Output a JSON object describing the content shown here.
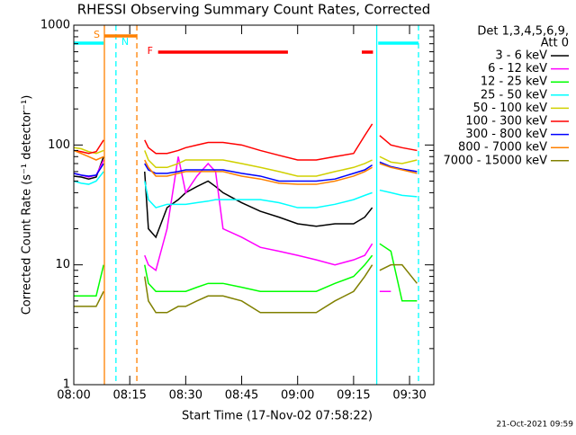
{
  "chart_data": {
    "type": "line",
    "title": "RHESSI Observing Summary Count Rates, Corrected",
    "xlabel": "Start Time (17-Nov-02 07:58:22)",
    "ylabel": "Corrected Count Rate (s⁻¹ detector⁻¹)",
    "legend_header": [
      "Det 1,3,4,5,6,9,",
      "Att 0"
    ],
    "footer": "21-Oct-2021 09:59",
    "log_y": true,
    "xlim": [
      0,
      96.5
    ],
    "ylim": [
      1,
      1000
    ],
    "xticks": [
      {
        "value": 0,
        "label": "08:00"
      },
      {
        "value": 15,
        "label": "08:15"
      },
      {
        "value": 30,
        "label": "08:30"
      },
      {
        "value": 45,
        "label": "08:45"
      },
      {
        "value": 60,
        "label": "09:00"
      },
      {
        "value": 75,
        "label": "09:15"
      },
      {
        "value": 90,
        "label": "09:30"
      }
    ],
    "yticks": [
      1,
      10,
      100,
      1000
    ],
    "x": [
      0,
      2,
      4,
      6,
      8,
      13,
      19,
      20,
      22,
      25,
      28,
      30,
      33,
      36,
      38,
      40,
      45,
      50,
      55,
      60,
      65,
      70,
      75,
      78,
      80,
      81,
      82,
      85,
      88,
      92
    ],
    "series": [
      {
        "name": "3 - 6 keV",
        "color": "#000000",
        "values": [
          55,
          54,
          52,
          54,
          80,
          null,
          60,
          20,
          17,
          30,
          35,
          40,
          45,
          50,
          45,
          40,
          33,
          28,
          25,
          22,
          21,
          22,
          22,
          25,
          30,
          null,
          null,
          null,
          null,
          null
        ]
      },
      {
        "name": "6 - 12 keV",
        "color": "#ff00ff",
        "values": [
          58,
          56,
          54,
          56,
          75,
          null,
          12,
          10,
          9,
          20,
          80,
          40,
          55,
          70,
          60,
          20,
          17,
          14,
          13,
          12,
          11,
          10,
          11,
          12,
          15,
          null,
          6,
          6,
          null,
          null
        ]
      },
      {
        "name": "12 - 25 keV",
        "color": "#00ff00",
        "values": [
          5.5,
          5.5,
          5.5,
          5.5,
          10,
          null,
          10,
          7,
          6,
          6,
          6,
          6,
          6.5,
          7,
          7,
          7,
          6.5,
          6,
          6,
          6,
          6,
          7,
          8,
          10,
          12,
          null,
          15,
          13,
          5,
          5
        ]
      },
      {
        "name": "25 - 50 keV",
        "color": "#00ffff",
        "values": [
          50,
          48,
          47,
          50,
          60,
          null,
          50,
          35,
          30,
          32,
          32,
          32,
          33,
          34,
          35,
          35,
          35,
          35,
          33,
          30,
          30,
          32,
          35,
          38,
          40,
          null,
          42,
          40,
          38,
          37
        ]
      },
      {
        "name": "50 - 100 keV",
        "color": "#d0d000",
        "values": [
          95,
          93,
          88,
          85,
          90,
          null,
          90,
          75,
          65,
          65,
          70,
          75,
          75,
          75,
          75,
          75,
          70,
          65,
          60,
          55,
          55,
          60,
          65,
          70,
          75,
          null,
          80,
          72,
          70,
          75
        ]
      },
      {
        "name": "100 - 300 keV",
        "color": "#ff0000",
        "values": [
          90,
          88,
          85,
          88,
          110,
          null,
          110,
          95,
          85,
          85,
          90,
          95,
          100,
          105,
          105,
          105,
          100,
          90,
          82,
          75,
          75,
          80,
          85,
          120,
          150,
          null,
          120,
          100,
          95,
          90
        ]
      },
      {
        "name": "300 - 800 keV",
        "color": "#0000ff",
        "values": [
          58,
          56,
          55,
          56,
          70,
          null,
          70,
          62,
          58,
          58,
          60,
          62,
          62,
          62,
          62,
          62,
          58,
          55,
          50,
          50,
          50,
          52,
          58,
          62,
          68,
          null,
          72,
          66,
          63,
          60
        ]
      },
      {
        "name": "800 - 7000 keV",
        "color": "#ff8000",
        "values": [
          90,
          85,
          80,
          75,
          80,
          null,
          75,
          65,
          55,
          55,
          58,
          60,
          60,
          60,
          60,
          60,
          55,
          52,
          48,
          47,
          47,
          50,
          55,
          60,
          65,
          null,
          70,
          65,
          62,
          58
        ]
      },
      {
        "name": "7000 - 15000 keV",
        "color": "#808000",
        "values": [
          4.5,
          4.5,
          4.5,
          4.5,
          6,
          null,
          8,
          5,
          4,
          4,
          4.5,
          4.5,
          5,
          5.5,
          5.5,
          5.5,
          5,
          4,
          4,
          4,
          4,
          5,
          6,
          8,
          10,
          null,
          9,
          10,
          10,
          7
        ]
      }
    ],
    "flags": [
      {
        "color": "#00ffff",
        "start": 0,
        "end": 8
      },
      {
        "color": "#ff8000",
        "start": 8.2,
        "end": 16.9,
        "label": "S"
      },
      {
        "color": "#ff0000",
        "start": 22.6,
        "end": 57.4,
        "label": "F"
      },
      {
        "color": "#ff0000",
        "start": 77.2,
        "end": 80.2
      },
      {
        "color": "#00ffff",
        "start": 81.6,
        "end": 92.4
      }
    ],
    "vlines": [
      {
        "x": 8.2,
        "color": "#ff8000",
        "dashed": false
      },
      {
        "x": 11.3,
        "color": "#00ffff",
        "dashed": true,
        "label": "N"
      },
      {
        "x": 16.9,
        "color": "#ff8000",
        "dashed": true
      },
      {
        "x": 81.2,
        "color": "#00ffff",
        "dashed": false
      },
      {
        "x": 92.4,
        "color": "#00ffff",
        "dashed": true
      }
    ]
  }
}
